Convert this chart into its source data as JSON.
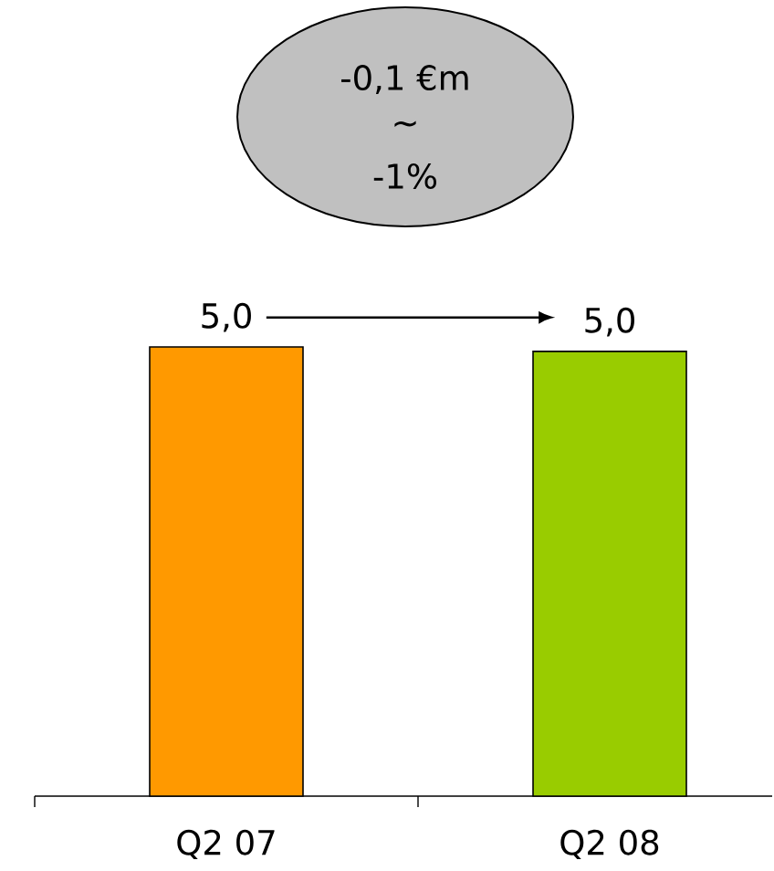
{
  "chart_data": {
    "type": "bar",
    "categories": [
      "Q2 07",
      "Q2 08"
    ],
    "values": [
      5.0,
      4.95
    ],
    "colors": [
      "#ff9900",
      "#99cc00"
    ],
    "value_labels": [
      "5,0",
      "5,0"
    ],
    "annotations": [
      "-0,1 €m",
      "~",
      "-1%"
    ]
  }
}
